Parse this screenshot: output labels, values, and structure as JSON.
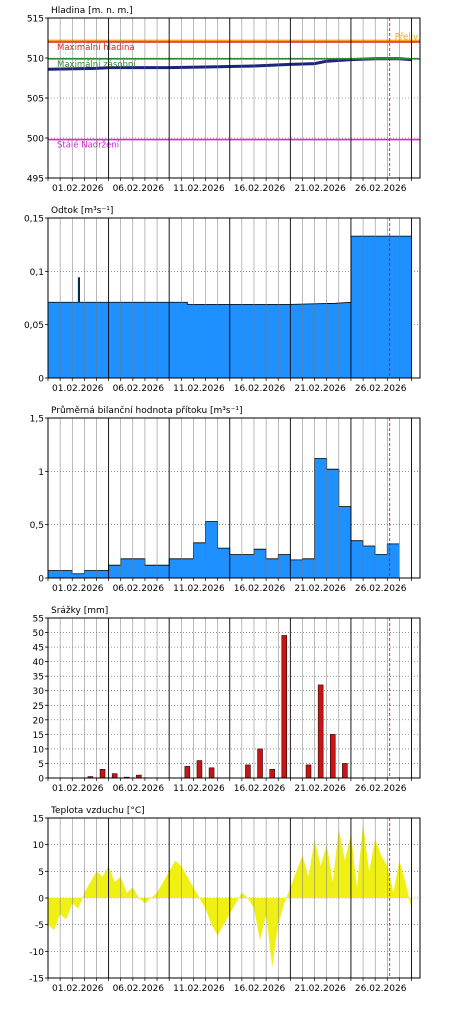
{
  "chart_data": [
    {
      "type": "line",
      "title": "Hladina [m. n. m.]",
      "ylim": [
        495,
        515
      ],
      "yticks": [
        495,
        500,
        505,
        510,
        515
      ],
      "grid": true,
      "x_tick_labels": [
        "01.02.2026",
        "06.02.2026",
        "11.02.2026",
        "16.02.2026",
        "21.02.2026",
        "26.02.2026"
      ],
      "reference_lines": [
        {
          "label": "Přeliv",
          "value": 512.2,
          "color": "#f5a623"
        },
        {
          "label": "Maximální hladina",
          "value": 512.0,
          "color": "#e02020"
        },
        {
          "label": "Maximální zásobní",
          "value": 509.9,
          "color": "#2e8b2e"
        },
        {
          "label": "Stálé Nadržení",
          "value": 499.8,
          "color": "#e020e0"
        }
      ],
      "series": [
        {
          "color": "#1a237e",
          "x": [
            0,
            4,
            5,
            10,
            14,
            17,
            20,
            22,
            23,
            25,
            27,
            29,
            30
          ],
          "y": [
            508.6,
            508.7,
            508.8,
            508.8,
            508.9,
            509.0,
            509.2,
            509.3,
            509.6,
            509.8,
            509.9,
            509.9,
            509.8
          ]
        }
      ]
    },
    {
      "type": "area",
      "title": "Odtok [m³s⁻¹]",
      "ylim": [
        0,
        0.15
      ],
      "yticks": [
        0,
        0.05,
        0.1,
        0.15
      ],
      "ytick_labels": [
        "0",
        "0,05",
        "0,1",
        "0,15"
      ],
      "grid": true,
      "x_tick_labels": [
        "01.02.2026",
        "06.02.2026",
        "11.02.2026",
        "16.02.2026",
        "21.02.2026",
        "26.02.2026"
      ],
      "series": [
        {
          "color": "#1e90ff",
          "x": [
            0,
            2.5,
            2.5,
            2.6,
            2.6,
            5,
            10,
            11.5,
            11.5,
            20,
            23.7,
            25,
            25,
            30
          ],
          "y": [
            0.071,
            0.071,
            0.094,
            0.094,
            0.071,
            0.071,
            0.071,
            0.071,
            0.069,
            0.069,
            0.07,
            0.071,
            0.133,
            0.133
          ]
        }
      ]
    },
    {
      "type": "area",
      "title": "Průměrná bilanční hodnota přítoku [m³s⁻¹]",
      "ylim": [
        0,
        1.5
      ],
      "yticks": [
        0,
        0.5,
        1,
        1.5
      ],
      "ytick_labels": [
        "0",
        "0,5",
        "1",
        "1,5"
      ],
      "grid": true,
      "x_tick_labels": [
        "01.02.2026",
        "06.02.2026",
        "11.02.2026",
        "16.02.2026",
        "21.02.2026",
        "26.02.2026"
      ],
      "series": [
        {
          "color": "#1e90ff",
          "steps": [
            0.07,
            0.07,
            0.04,
            0.07,
            0.07,
            0.12,
            0.18,
            0.18,
            0.12,
            0.12,
            0.18,
            0.18,
            0.33,
            0.53,
            0.28,
            0.22,
            0.22,
            0.27,
            0.18,
            0.22,
            0.17,
            0.18,
            1.12,
            1.02,
            0.67,
            0.35,
            0.3,
            0.22,
            0.32
          ]
        }
      ]
    },
    {
      "type": "bar",
      "title": "Srážky [mm]",
      "ylim": [
        0,
        55
      ],
      "yticks": [
        0,
        5,
        10,
        15,
        20,
        25,
        30,
        35,
        40,
        45,
        50,
        55
      ],
      "grid": true,
      "x_tick_labels": [
        "01.02.2026",
        "06.02.2026",
        "11.02.2026",
        "16.02.2026",
        "21.02.2026",
        "26.02.2026"
      ],
      "series": [
        {
          "color": "#c81414",
          "x": [
            3,
            4,
            5,
            6,
            7,
            11,
            12,
            13,
            16,
            17,
            18,
            19,
            21,
            22,
            23,
            24
          ],
          "values": [
            0.5,
            3,
            1.5,
            0.3,
            1,
            4,
            6,
            3.5,
            4.5,
            10,
            3,
            49,
            4.5,
            32,
            15,
            5
          ]
        }
      ]
    },
    {
      "type": "area",
      "title": "Teplota vzduchu [°C]",
      "ylim": [
        -15,
        15
      ],
      "yticks": [
        -15,
        -10,
        -5,
        0,
        5,
        10,
        15
      ],
      "grid": true,
      "x_tick_labels": [
        "01.02.2026",
        "06.02.2026",
        "11.02.2026",
        "16.02.2026",
        "21.02.2026",
        "26.02.2026"
      ],
      "series": [
        {
          "color": "#f0f014",
          "x": [
            0,
            0.5,
            1,
            1.5,
            2,
            2.5,
            3,
            3.5,
            4,
            4.5,
            5,
            5.5,
            6,
            6.5,
            7,
            7.5,
            8,
            8.5,
            9,
            9.5,
            10,
            10.5,
            11,
            11.5,
            12,
            12.5,
            13,
            13.5,
            14,
            14.5,
            15,
            15.5,
            16,
            16.5,
            17,
            17.5,
            18,
            18.5,
            19,
            19.5,
            20,
            20.5,
            21,
            21.5,
            22,
            22.5,
            23,
            23.5,
            24,
            24.5,
            25,
            25.5,
            26,
            26.5,
            27,
            27.5,
            28,
            28.5,
            29,
            29.5,
            30
          ],
          "y": [
            -5,
            -6,
            -3,
            -4,
            -1,
            -2,
            1,
            3,
            5,
            4,
            6,
            3,
            4,
            1,
            2,
            0,
            -1,
            0,
            1,
            3,
            5,
            7,
            6,
            4,
            2,
            0,
            -2,
            -5,
            -7,
            -5,
            -3,
            -1,
            1,
            0,
            -2,
            -8,
            -3,
            -13,
            -5,
            -1,
            2,
            5,
            8,
            4,
            11,
            6,
            10,
            3,
            13,
            7,
            12,
            2,
            14,
            5,
            11,
            8,
            6,
            1,
            7,
            3,
            -2
          ]
        }
      ]
    }
  ]
}
